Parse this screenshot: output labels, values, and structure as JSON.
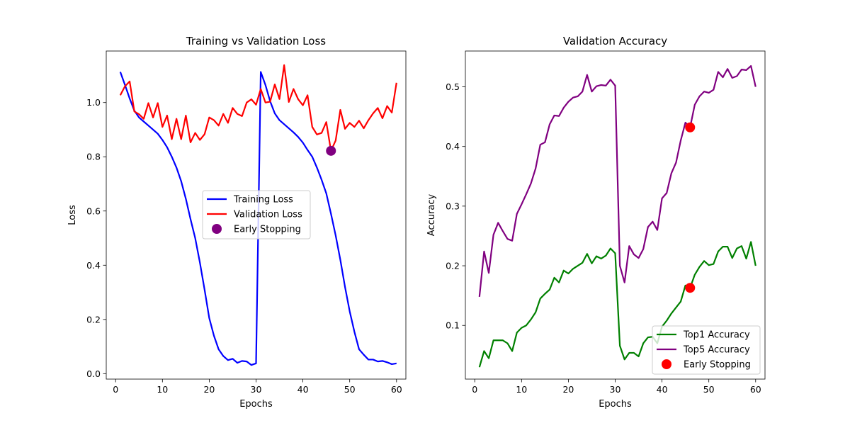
{
  "chart_data": [
    {
      "type": "line",
      "title": "Training vs Validation Loss",
      "xlabel": "Epochs",
      "ylabel": "Loss",
      "xlim": [
        -2,
        62
      ],
      "ylim": [
        -0.02,
        1.19
      ],
      "xticks": [
        0,
        10,
        20,
        30,
        40,
        50,
        60
      ],
      "yticks": [
        0.0,
        0.2,
        0.4,
        0.6,
        0.8,
        1.0
      ],
      "grid": false,
      "legend_position": "center-right",
      "x": [
        1,
        2,
        3,
        4,
        5,
        6,
        7,
        8,
        9,
        10,
        11,
        12,
        13,
        14,
        15,
        16,
        17,
        18,
        19,
        20,
        21,
        22,
        23,
        24,
        25,
        26,
        27,
        28,
        29,
        30,
        31,
        32,
        33,
        34,
        35,
        36,
        37,
        38,
        39,
        40,
        41,
        42,
        43,
        44,
        45,
        46,
        47,
        48,
        49,
        50,
        51,
        52,
        53,
        54,
        55,
        56,
        57,
        58,
        59,
        60
      ],
      "series": [
        {
          "name": "Training Loss",
          "color": "#0000ff",
          "values": [
            1.113,
            1.065,
            1.015,
            0.97,
            0.945,
            0.93,
            0.915,
            0.9,
            0.885,
            0.862,
            0.835,
            0.8,
            0.76,
            0.71,
            0.645,
            0.57,
            0.5,
            0.41,
            0.31,
            0.205,
            0.14,
            0.09,
            0.065,
            0.05,
            0.055,
            0.04,
            0.047,
            0.045,
            0.032,
            0.038,
            1.113,
            1.065,
            1.005,
            0.96,
            0.935,
            0.92,
            0.905,
            0.89,
            0.873,
            0.852,
            0.825,
            0.8,
            0.76,
            0.715,
            0.665,
            0.59,
            0.51,
            0.42,
            0.32,
            0.23,
            0.155,
            0.09,
            0.07,
            0.052,
            0.052,
            0.045,
            0.047,
            0.042,
            0.035,
            0.038
          ]
        },
        {
          "name": "Validation Loss",
          "color": "#ff0000",
          "values": [
            1.027,
            1.06,
            1.078,
            0.967,
            0.957,
            0.94,
            0.998,
            0.945,
            0.998,
            0.91,
            0.952,
            0.865,
            0.94,
            0.865,
            0.952,
            0.853,
            0.888,
            0.862,
            0.883,
            0.945,
            0.935,
            0.915,
            0.958,
            0.925,
            0.98,
            0.958,
            0.95,
            1.0,
            1.012,
            0.992,
            1.05,
            1.0,
            1.003,
            1.067,
            1.013,
            1.138,
            1.002,
            1.05,
            1.012,
            0.99,
            1.027,
            0.91,
            0.882,
            0.888,
            0.928,
            0.822,
            0.86,
            0.973,
            0.903,
            0.925,
            0.91,
            0.933,
            0.905,
            0.935,
            0.96,
            0.98,
            0.942,
            0.987,
            0.963,
            1.073
          ]
        }
      ],
      "markers": [
        {
          "name": "Early Stopping",
          "color": "#800080",
          "x": 46,
          "y": 0.822
        }
      ]
    },
    {
      "type": "line",
      "title": "Validation Accuracy",
      "xlabel": "Epochs",
      "ylabel": "Accuracy",
      "xlim": [
        -2,
        62
      ],
      "ylim": [
        0.01,
        0.56
      ],
      "xticks": [
        0,
        10,
        20,
        30,
        40,
        50,
        60
      ],
      "yticks": [
        0.1,
        0.2,
        0.3,
        0.4,
        0.5
      ],
      "grid": false,
      "legend_position": "lower-right",
      "x": [
        1,
        2,
        3,
        4,
        5,
        6,
        7,
        8,
        9,
        10,
        11,
        12,
        13,
        14,
        15,
        16,
        17,
        18,
        19,
        20,
        21,
        22,
        23,
        24,
        25,
        26,
        27,
        28,
        29,
        30,
        31,
        32,
        33,
        34,
        35,
        36,
        37,
        38,
        39,
        40,
        41,
        42,
        43,
        44,
        45,
        46,
        47,
        48,
        49,
        50,
        51,
        52,
        53,
        54,
        55,
        56,
        57,
        58,
        59,
        60
      ],
      "series": [
        {
          "name": "Top1 Accuracy",
          "color": "#008000",
          "values": [
            0.03,
            0.057,
            0.045,
            0.075,
            0.075,
            0.075,
            0.07,
            0.057,
            0.088,
            0.096,
            0.1,
            0.11,
            0.122,
            0.145,
            0.153,
            0.16,
            0.18,
            0.172,
            0.192,
            0.187,
            0.195,
            0.2,
            0.205,
            0.22,
            0.204,
            0.216,
            0.212,
            0.217,
            0.229,
            0.221,
            0.066,
            0.043,
            0.054,
            0.054,
            0.048,
            0.07,
            0.08,
            0.081,
            0.07,
            0.098,
            0.108,
            0.12,
            0.13,
            0.14,
            0.167,
            0.163,
            0.185,
            0.198,
            0.208,
            0.201,
            0.203,
            0.224,
            0.232,
            0.232,
            0.213,
            0.229,
            0.233,
            0.212,
            0.24,
            0.2
          ]
        },
        {
          "name": "Top5 Accuracy",
          "color": "#800080",
          "values": [
            0.148,
            0.224,
            0.188,
            0.252,
            0.272,
            0.258,
            0.245,
            0.242,
            0.287,
            0.303,
            0.32,
            0.338,
            0.363,
            0.403,
            0.407,
            0.437,
            0.452,
            0.451,
            0.465,
            0.475,
            0.482,
            0.484,
            0.492,
            0.52,
            0.492,
            0.501,
            0.503,
            0.502,
            0.512,
            0.502,
            0.2,
            0.172,
            0.233,
            0.219,
            0.213,
            0.228,
            0.265,
            0.274,
            0.26,
            0.313,
            0.322,
            0.355,
            0.373,
            0.41,
            0.44,
            0.432,
            0.47,
            0.484,
            0.492,
            0.49,
            0.495,
            0.525,
            0.516,
            0.53,
            0.515,
            0.518,
            0.529,
            0.528,
            0.535,
            0.5
          ]
        }
      ],
      "markers": [
        {
          "name": "Early Stopping",
          "color": "#ff0000",
          "x": 46,
          "y": 0.432
        },
        {
          "name": "Early Stopping",
          "color": "#ff0000",
          "x": 46,
          "y": 0.163
        }
      ]
    }
  ]
}
